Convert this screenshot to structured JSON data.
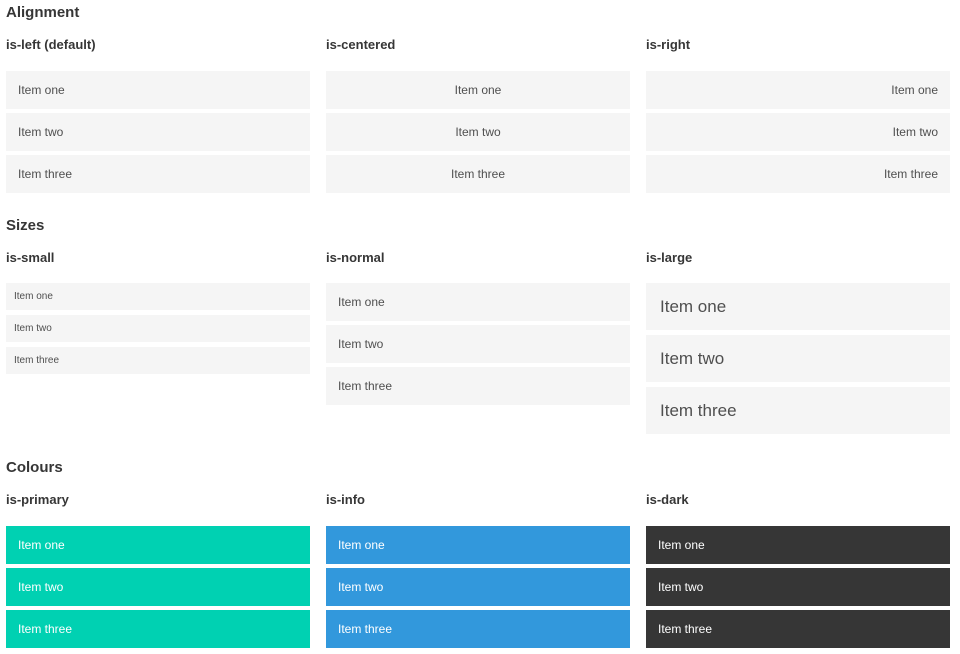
{
  "sections": [
    {
      "title": "Alignment",
      "columns": [
        {
          "label": "is-left (default)",
          "variant": "left",
          "items": [
            "Item one",
            "Item two",
            "Item three"
          ]
        },
        {
          "label": "is-centered",
          "variant": "centered",
          "items": [
            "Item one",
            "Item two",
            "Item three"
          ]
        },
        {
          "label": "is-right",
          "variant": "right",
          "items": [
            "Item one",
            "Item two",
            "Item three"
          ]
        }
      ]
    },
    {
      "title": "Sizes",
      "columns": [
        {
          "label": "is-small",
          "variant": "small",
          "items": [
            "Item one",
            "Item two",
            "Item three"
          ]
        },
        {
          "label": "is-normal",
          "variant": "normal",
          "items": [
            "Item one",
            "Item two",
            "Item three"
          ]
        },
        {
          "label": "is-large",
          "variant": "large",
          "items": [
            "Item one",
            "Item two",
            "Item three"
          ]
        }
      ]
    },
    {
      "title": "Colours",
      "columns": [
        {
          "label": "is-primary",
          "variant": "primary",
          "items": [
            "Item one",
            "Item two",
            "Item three"
          ]
        },
        {
          "label": "is-info",
          "variant": "info",
          "items": [
            "Item one",
            "Item two",
            "Item three"
          ]
        },
        {
          "label": "is-dark",
          "variant": "dark",
          "items": [
            "Item one",
            "Item two",
            "Item three"
          ]
        }
      ]
    }
  ],
  "colors": {
    "primary": "#00d1b2",
    "info": "#3298dc",
    "dark": "#363636",
    "item_bg": "#f5f5f5",
    "item_text": "#4f4f4f",
    "heading_text": "#363636"
  }
}
